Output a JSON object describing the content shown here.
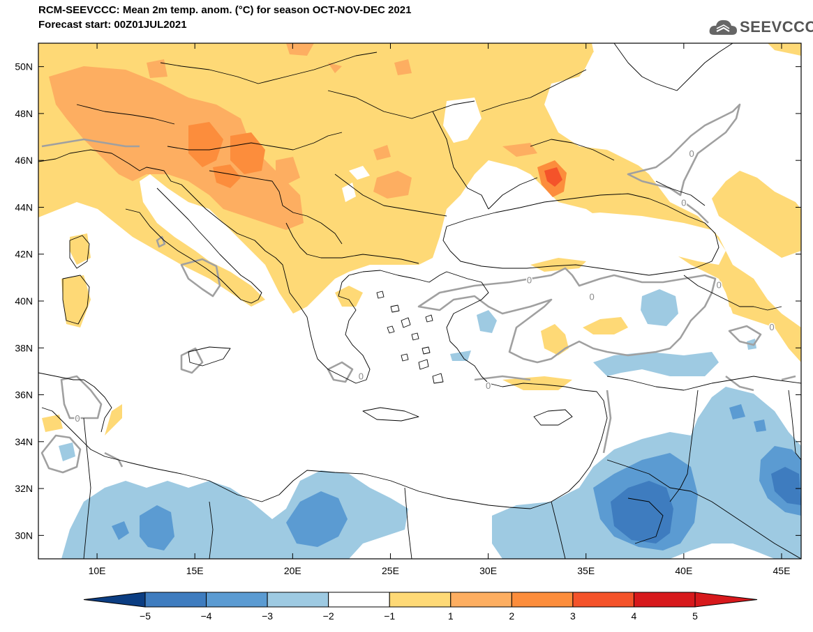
{
  "header": {
    "title_line1": "RCM-SEEVCCC: Mean 2m temp. anom. (°C) for season OCT-NOV-DEC 2021",
    "title_line2": "Forecast start: 00Z01JUL2021",
    "logo_text": "SEEVCCC"
  },
  "map": {
    "lon_range": [
      7,
      46
    ],
    "lat_range": [
      29,
      51
    ],
    "lat_ticks": [
      "30N",
      "32N",
      "34N",
      "36N",
      "38N",
      "40N",
      "42N",
      "44N",
      "46N",
      "48N",
      "50N"
    ],
    "lon_ticks": [
      "10E",
      "15E",
      "20E",
      "25E",
      "30E",
      "35E",
      "40E",
      "45E"
    ],
    "contour_label": "0"
  },
  "colorbar": {
    "levels": [
      "−5",
      "−4",
      "−3",
      "−2",
      "−1",
      "1",
      "2",
      "3",
      "4",
      "5"
    ],
    "colors": [
      "#1f5a9e",
      "#3e7cbf",
      "#5b9bd2",
      "#9ecae2",
      "#ffffff",
      "#fed976",
      "#fdae61",
      "#fc8d3c",
      "#f4532a",
      "#d7191c"
    ],
    "min_color": "#0b3d82",
    "max_color": "#d7191c"
  },
  "colors": {
    "anom_1_2": "#fed976",
    "anom_2_3": "#fdae61",
    "anom_3_4": "#fc8d3c",
    "anom_4_5": "#f4532a",
    "anom_m1_m2": "#9ecae2",
    "anom_m2_m3": "#5b9bd2",
    "anom_m3_m4": "#3e7cbf",
    "contour": "#a0a0a0",
    "coast": "#000000"
  }
}
